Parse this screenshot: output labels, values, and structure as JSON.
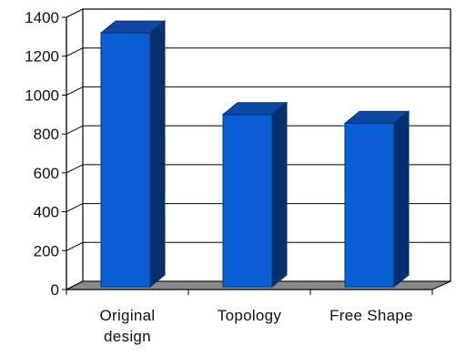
{
  "chart_data": {
    "type": "bar",
    "style": "3d-column",
    "title": "",
    "xlabel": "",
    "ylabel": "",
    "categories": [
      [
        "Original",
        "design"
      ],
      [
        "Topology"
      ],
      [
        "Free Shape"
      ]
    ],
    "values": [
      1320,
      900,
      855
    ],
    "ylim": [
      0,
      1400
    ],
    "yticks": [
      "0",
      "200",
      "400",
      "600",
      "800",
      "1000",
      "1200",
      "1400"
    ],
    "ytick_values": [
      0,
      200,
      400,
      600,
      800,
      1000,
      1200,
      1400
    ],
    "grid": true,
    "legend": "none",
    "colors": {
      "bar_front": "#0a5fd6",
      "bar_top": "#0b47a3",
      "bar_side": "#062f6e",
      "bar_outline": "#07306a",
      "floor": "#8a8a8a",
      "wall": "#ffffff",
      "grid": "#000000",
      "axis": "#000000"
    }
  }
}
